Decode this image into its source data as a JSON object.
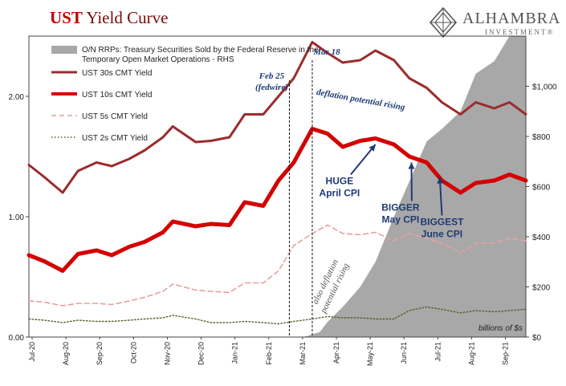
{
  "header": {
    "title_part1": "UST",
    "title_part2": "Yield Curve",
    "brand_name": "ALHAMBRA",
    "brand_sub": "INVESTMENT®"
  },
  "colors": {
    "y30": "#9b2c2c",
    "y10": "#d40000",
    "y5": "#e8a0a0",
    "y2": "#5b5b2a",
    "rrp": "#a8a8a8",
    "title_red": "#c00000",
    "annot_blue": "#1f3a73"
  },
  "chart_data": {
    "type": "line",
    "left_axis": {
      "ylim": [
        0,
        2.5
      ],
      "ticks": [
        "0.00",
        "1.00",
        "2.00"
      ]
    },
    "right_axis": {
      "ylim": [
        0,
        1200
      ],
      "ticks": [
        "$0",
        "$200",
        "$400",
        "$600",
        "$800",
        "$1,000"
      ],
      "unit_label": "billions of $s"
    },
    "x_labels": [
      "Jul-20",
      "Aug-20",
      "Sep-20",
      "Oct-20",
      "Nov-20",
      "Dec-20",
      "Jan-21",
      "Feb-21",
      "Mar-21",
      "Apr-21",
      "May-21",
      "Jun-21",
      "Jul-21",
      "Aug-21",
      "Sep-21"
    ],
    "x_range": [
      "2020-07-01",
      "2021-09-30"
    ],
    "legend": [
      {
        "key": "rrp",
        "label": "O/N RRPs: Treasury Securities Sold by the Federal Reserve in the Temporary Open Market Operations - RHS"
      },
      {
        "key": "y30",
        "label": "UST 30s CMT Yield"
      },
      {
        "key": "y10",
        "label": "UST 10s CMT Yield"
      },
      {
        "key": "y5",
        "label": "UST 5s CMT Yield"
      },
      {
        "key": "y2",
        "label": "UST 2s CMT Yield"
      }
    ],
    "series": [
      {
        "key": "y30",
        "name": "UST 30s CMT Yield",
        "points": [
          [
            "2020-07-01",
            1.43
          ],
          [
            "2020-07-15",
            1.33
          ],
          [
            "2020-08-01",
            1.2
          ],
          [
            "2020-08-15",
            1.38
          ],
          [
            "2020-09-01",
            1.45
          ],
          [
            "2020-09-15",
            1.42
          ],
          [
            "2020-10-01",
            1.48
          ],
          [
            "2020-10-15",
            1.55
          ],
          [
            "2020-11-01",
            1.66
          ],
          [
            "2020-11-10",
            1.75
          ],
          [
            "2020-12-01",
            1.62
          ],
          [
            "2020-12-15",
            1.63
          ],
          [
            "2021-01-01",
            1.66
          ],
          [
            "2021-01-15",
            1.85
          ],
          [
            "2021-02-01",
            1.85
          ],
          [
            "2021-02-15",
            2.0
          ],
          [
            "2021-03-01",
            2.15
          ],
          [
            "2021-03-18",
            2.45
          ],
          [
            "2021-04-01",
            2.36
          ],
          [
            "2021-04-15",
            2.28
          ],
          [
            "2021-05-01",
            2.3
          ],
          [
            "2021-05-15",
            2.38
          ],
          [
            "2021-06-01",
            2.3
          ],
          [
            "2021-06-15",
            2.15
          ],
          [
            "2021-07-01",
            2.07
          ],
          [
            "2021-07-15",
            1.95
          ],
          [
            "2021-08-01",
            1.85
          ],
          [
            "2021-08-15",
            1.95
          ],
          [
            "2021-09-01",
            1.9
          ],
          [
            "2021-09-15",
            1.95
          ],
          [
            "2021-09-30",
            1.85
          ]
        ]
      },
      {
        "key": "y10",
        "name": "UST 10s CMT Yield",
        "points": [
          [
            "2020-07-01",
            0.68
          ],
          [
            "2020-07-15",
            0.63
          ],
          [
            "2020-08-01",
            0.55
          ],
          [
            "2020-08-15",
            0.69
          ],
          [
            "2020-09-01",
            0.72
          ],
          [
            "2020-09-15",
            0.68
          ],
          [
            "2020-10-01",
            0.75
          ],
          [
            "2020-10-15",
            0.79
          ],
          [
            "2020-11-01",
            0.87
          ],
          [
            "2020-11-10",
            0.96
          ],
          [
            "2020-12-01",
            0.92
          ],
          [
            "2020-12-15",
            0.94
          ],
          [
            "2021-01-01",
            0.93
          ],
          [
            "2021-01-15",
            1.12
          ],
          [
            "2021-02-01",
            1.09
          ],
          [
            "2021-02-15",
            1.3
          ],
          [
            "2021-03-01",
            1.45
          ],
          [
            "2021-03-18",
            1.73
          ],
          [
            "2021-04-01",
            1.69
          ],
          [
            "2021-04-15",
            1.58
          ],
          [
            "2021-05-01",
            1.63
          ],
          [
            "2021-05-15",
            1.65
          ],
          [
            "2021-06-01",
            1.6
          ],
          [
            "2021-06-15",
            1.5
          ],
          [
            "2021-07-01",
            1.45
          ],
          [
            "2021-07-15",
            1.3
          ],
          [
            "2021-08-01",
            1.2
          ],
          [
            "2021-08-15",
            1.28
          ],
          [
            "2021-09-01",
            1.3
          ],
          [
            "2021-09-15",
            1.35
          ],
          [
            "2021-09-30",
            1.3
          ]
        ]
      },
      {
        "key": "y5",
        "name": "UST 5s CMT Yield",
        "dashed": true,
        "points": [
          [
            "2020-07-01",
            0.3
          ],
          [
            "2020-07-15",
            0.29
          ],
          [
            "2020-08-01",
            0.26
          ],
          [
            "2020-08-15",
            0.28
          ],
          [
            "2020-09-01",
            0.28
          ],
          [
            "2020-09-15",
            0.27
          ],
          [
            "2020-10-01",
            0.3
          ],
          [
            "2020-10-15",
            0.33
          ],
          [
            "2020-11-01",
            0.38
          ],
          [
            "2020-11-10",
            0.44
          ],
          [
            "2020-12-01",
            0.39
          ],
          [
            "2020-12-15",
            0.38
          ],
          [
            "2021-01-01",
            0.37
          ],
          [
            "2021-01-15",
            0.45
          ],
          [
            "2021-02-01",
            0.45
          ],
          [
            "2021-02-15",
            0.55
          ],
          [
            "2021-03-01",
            0.76
          ],
          [
            "2021-03-18",
            0.86
          ],
          [
            "2021-04-01",
            0.93
          ],
          [
            "2021-04-15",
            0.86
          ],
          [
            "2021-05-01",
            0.85
          ],
          [
            "2021-05-15",
            0.87
          ],
          [
            "2021-06-01",
            0.8
          ],
          [
            "2021-06-15",
            0.86
          ],
          [
            "2021-07-01",
            0.82
          ],
          [
            "2021-07-15",
            0.78
          ],
          [
            "2021-08-01",
            0.7
          ],
          [
            "2021-08-15",
            0.78
          ],
          [
            "2021-09-01",
            0.78
          ],
          [
            "2021-09-15",
            0.82
          ],
          [
            "2021-09-30",
            0.8
          ]
        ]
      },
      {
        "key": "y2",
        "name": "UST 2s CMT Yield",
        "dotted": true,
        "points": [
          [
            "2020-07-01",
            0.15
          ],
          [
            "2020-07-15",
            0.14
          ],
          [
            "2020-08-01",
            0.12
          ],
          [
            "2020-08-15",
            0.14
          ],
          [
            "2020-09-01",
            0.13
          ],
          [
            "2020-09-15",
            0.13
          ],
          [
            "2020-10-01",
            0.14
          ],
          [
            "2020-10-15",
            0.15
          ],
          [
            "2020-11-01",
            0.16
          ],
          [
            "2020-11-10",
            0.18
          ],
          [
            "2020-12-01",
            0.15
          ],
          [
            "2020-12-15",
            0.12
          ],
          [
            "2021-01-01",
            0.12
          ],
          [
            "2021-01-15",
            0.13
          ],
          [
            "2021-02-01",
            0.12
          ],
          [
            "2021-02-15",
            0.11
          ],
          [
            "2021-03-01",
            0.13
          ],
          [
            "2021-03-18",
            0.15
          ],
          [
            "2021-04-01",
            0.17
          ],
          [
            "2021-04-15",
            0.16
          ],
          [
            "2021-05-01",
            0.16
          ],
          [
            "2021-05-15",
            0.15
          ],
          [
            "2021-06-01",
            0.15
          ],
          [
            "2021-06-15",
            0.22
          ],
          [
            "2021-07-01",
            0.25
          ],
          [
            "2021-07-15",
            0.23
          ],
          [
            "2021-08-01",
            0.2
          ],
          [
            "2021-08-15",
            0.22
          ],
          [
            "2021-09-01",
            0.21
          ],
          [
            "2021-09-15",
            0.22
          ],
          [
            "2021-09-30",
            0.23
          ]
        ]
      }
    ],
    "rrp_series": {
      "key": "rrp",
      "name": "O/N RRPs: Treasury Securities Sold by the Federal Reserve in the Temporary Open Market Operations - RHS",
      "axis": "right",
      "points": [
        [
          "2020-07-01",
          0
        ],
        [
          "2021-03-10",
          0
        ],
        [
          "2021-03-25",
          20
        ],
        [
          "2021-04-01",
          60
        ],
        [
          "2021-04-15",
          120
        ],
        [
          "2021-05-01",
          200
        ],
        [
          "2021-05-15",
          300
        ],
        [
          "2021-06-01",
          480
        ],
        [
          "2021-06-15",
          620
        ],
        [
          "2021-07-01",
          780
        ],
        [
          "2021-07-15",
          830
        ],
        [
          "2021-08-01",
          900
        ],
        [
          "2021-08-15",
          1050
        ],
        [
          "2021-09-01",
          1100
        ],
        [
          "2021-09-15",
          1250
        ],
        [
          "2021-09-30",
          1200
        ]
      ]
    },
    "vlines": [
      {
        "date": "2021-02-25",
        "label_line1": "Feb 25",
        "label_line2": "(fedwire)"
      },
      {
        "date": "2021-03-18",
        "label_line1": "Mar 18",
        "label_line2": ""
      }
    ],
    "annotations": [
      {
        "text": "deflation potential rising",
        "date": "2021-05-01",
        "value": 1.95,
        "rotate": 10
      },
      {
        "text_line1": "also deflation",
        "text_line2": "potential rising",
        "date": "2021-04-01",
        "value": 0.45,
        "rotate": -64
      },
      {
        "text_line1": "HUGE",
        "text_line2": "April CPI",
        "date": "2021-04-12",
        "value": 1.27,
        "arrow_to": [
          "2021-05-15",
          1.6
        ]
      },
      {
        "text_line1": "BIGGER",
        "text_line2": "May CPI",
        "date": "2021-06-07",
        "value": 1.05,
        "arrow_to": [
          "2021-06-17",
          1.45
        ]
      },
      {
        "text_line1": "BIGGEST",
        "text_line2": "June CPI",
        "date": "2021-07-15",
        "value": 0.93,
        "arrow_to": [
          "2021-07-13",
          1.33
        ]
      }
    ]
  }
}
